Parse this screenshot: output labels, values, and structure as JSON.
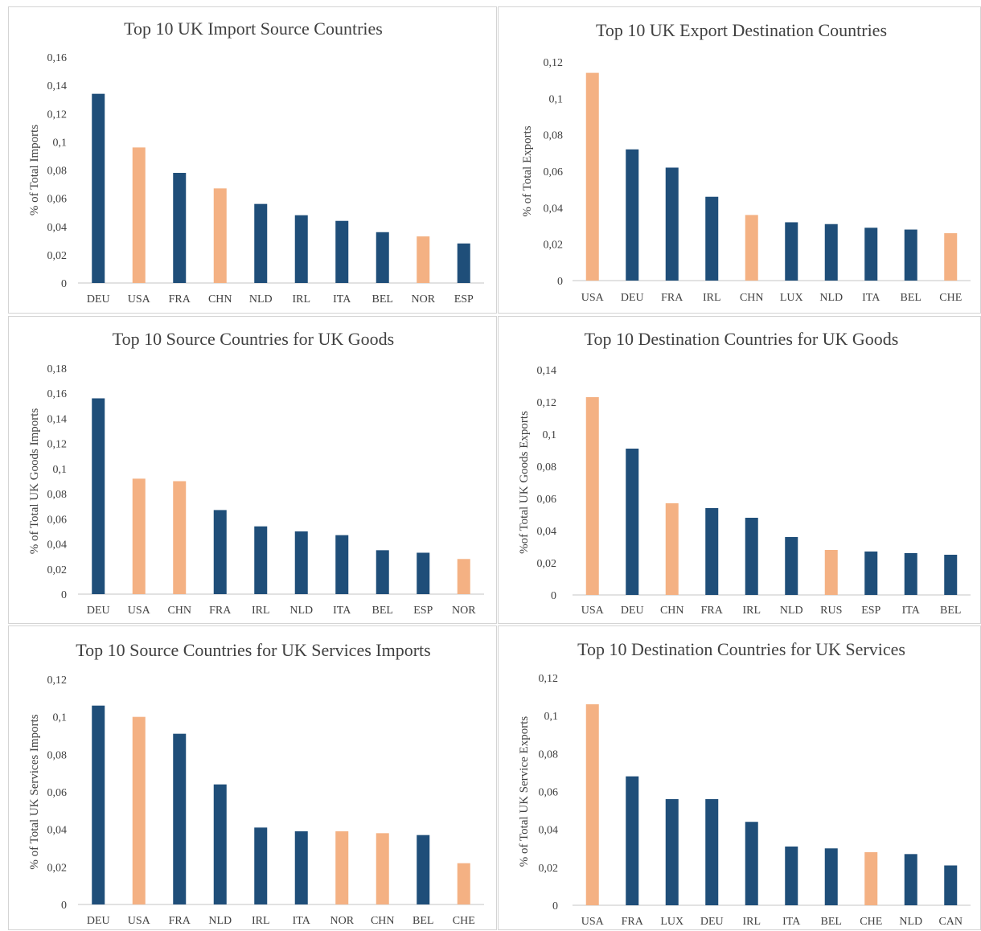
{
  "colors": {
    "primary": "#1f4e79",
    "highlight": "#f4b183"
  },
  "chart_data": [
    {
      "type": "bar",
      "title": "Top 10 UK Import Source Countries",
      "ylabel": "% of Total Imports",
      "categories": [
        "DEU",
        "USA",
        "FRA",
        "CHN",
        "NLD",
        "IRL",
        "ITA",
        "BEL",
        "NOR",
        "ESP"
      ],
      "values": [
        0.134,
        0.096,
        0.078,
        0.067,
        0.056,
        0.048,
        0.044,
        0.036,
        0.033,
        0.028
      ],
      "highlighted": [
        "USA",
        "CHN",
        "NOR"
      ],
      "ylim": [
        0,
        0.16
      ],
      "yticks": [
        "0",
        "0,02",
        "0,04",
        "0,06",
        "0,08",
        "0,1",
        "0,12",
        "0,14",
        "0,16"
      ]
    },
    {
      "type": "bar",
      "title": "Top 10 UK Export Destination Countries",
      "ylabel": "% of Total Exports",
      "categories": [
        "USA",
        "DEU",
        "FRA",
        "IRL",
        "CHN",
        "LUX",
        "NLD",
        "ITA",
        "BEL",
        "CHE"
      ],
      "values": [
        0.114,
        0.072,
        0.062,
        0.046,
        0.036,
        0.032,
        0.031,
        0.029,
        0.028,
        0.026
      ],
      "highlighted": [
        "USA",
        "CHN",
        "CHE"
      ],
      "ylim": [
        0,
        0.12
      ],
      "yticks": [
        "0",
        "0,02",
        "0,04",
        "0,06",
        "0,08",
        "0,1",
        "0,12"
      ]
    },
    {
      "type": "bar",
      "title": "Top 10 Source Countries for UK Goods",
      "ylabel": "% of Total UK Goods Imports",
      "categories": [
        "DEU",
        "USA",
        "CHN",
        "FRA",
        "IRL",
        "NLD",
        "ITA",
        "BEL",
        "ESP",
        "NOR"
      ],
      "values": [
        0.156,
        0.092,
        0.09,
        0.067,
        0.054,
        0.05,
        0.047,
        0.035,
        0.033,
        0.028
      ],
      "highlighted": [
        "USA",
        "CHN",
        "NOR"
      ],
      "ylim": [
        0,
        0.18
      ],
      "yticks": [
        "0",
        "0,02",
        "0,04",
        "0,06",
        "0,08",
        "0,1",
        "0,12",
        "0,14",
        "0,16",
        "0,18"
      ]
    },
    {
      "type": "bar",
      "title": "Top 10 Destination Countries for UK Goods",
      "ylabel": "%of Total UK Goods Exports",
      "categories": [
        "USA",
        "DEU",
        "CHN",
        "FRA",
        "IRL",
        "NLD",
        "RUS",
        "ESP",
        "ITA",
        "BEL"
      ],
      "values": [
        0.123,
        0.091,
        0.057,
        0.054,
        0.048,
        0.036,
        0.028,
        0.027,
        0.026,
        0.025
      ],
      "highlighted": [
        "USA",
        "CHN",
        "RUS"
      ],
      "ylim": [
        0,
        0.14
      ],
      "yticks": [
        "0",
        "0,02",
        "0,04",
        "0,06",
        "0,08",
        "0,1",
        "0,12",
        "0,14"
      ]
    },
    {
      "type": "bar",
      "title": "Top 10 Source Countries for UK Services Imports",
      "ylabel": "% of Total UK Services Imports",
      "categories": [
        "DEU",
        "USA",
        "FRA",
        "NLD",
        "IRL",
        "ITA",
        "NOR",
        "CHN",
        "BEL",
        "CHE"
      ],
      "values": [
        0.106,
        0.1,
        0.091,
        0.064,
        0.041,
        0.039,
        0.039,
        0.038,
        0.037,
        0.022
      ],
      "highlighted": [
        "USA",
        "NOR",
        "CHN",
        "CHE"
      ],
      "ylim": [
        0,
        0.12
      ],
      "yticks": [
        "0",
        "0,02",
        "0,04",
        "0,06",
        "0,08",
        "0,1",
        "0,12"
      ]
    },
    {
      "type": "bar",
      "title": "Top 10 Destination Countries for UK Services",
      "ylabel": "% of Total UK Service Exports",
      "categories": [
        "USA",
        "FRA",
        "LUX",
        "DEU",
        "IRL",
        "ITA",
        "BEL",
        "CHE",
        "NLD",
        "CAN"
      ],
      "values": [
        0.106,
        0.068,
        0.056,
        0.056,
        0.044,
        0.031,
        0.03,
        0.028,
        0.027,
        0.021
      ],
      "highlighted": [
        "USA",
        "CHE"
      ],
      "ylim": [
        0,
        0.12
      ],
      "yticks": [
        "0",
        "0,02",
        "0,04",
        "0,06",
        "0,08",
        "0,1",
        "0,12"
      ]
    }
  ]
}
